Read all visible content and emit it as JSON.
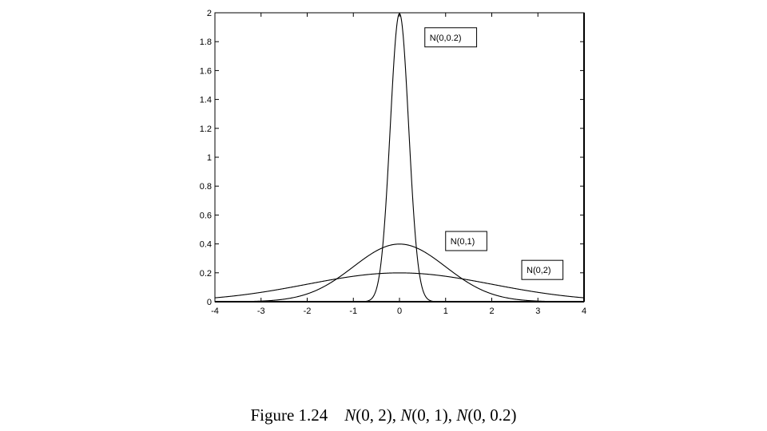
{
  "caption": {
    "prefix": "Figure 1.24",
    "parts": [
      {
        "italic": "N",
        "rest": "(0, 2), "
      },
      {
        "italic": "N",
        "rest": "(0, 1), "
      },
      {
        "italic": "N",
        "rest": "(0, 0.2)"
      }
    ]
  },
  "chart_data": {
    "type": "line",
    "title": "",
    "xlabel": "",
    "ylabel": "",
    "xlim": [
      -4,
      4
    ],
    "ylim": [
      0,
      2
    ],
    "x_ticks": [
      -4,
      -3,
      -2,
      -1,
      0,
      1,
      2,
      3,
      4
    ],
    "x_tick_labels": [
      "-4",
      "-3",
      "-2",
      "-1",
      "0",
      "1",
      "2",
      "3",
      "4"
    ],
    "y_ticks": [
      0,
      0.2,
      0.4,
      0.6,
      0.8,
      1,
      1.2,
      1.4,
      1.6,
      1.8,
      2
    ],
    "y_tick_labels": [
      "0",
      "0.2",
      "0.4",
      "0.6",
      "0.8",
      "1",
      "1.2",
      "1.4",
      "1.6",
      "1.8",
      "2"
    ],
    "grid": false,
    "series": [
      {
        "name": "N(0,2)",
        "distribution": "normal",
        "mean": 0,
        "sigma": 2,
        "peak": 0.2,
        "x": [
          -4,
          -3,
          -2,
          -1,
          0,
          1,
          2,
          3,
          4
        ],
        "values": [
          0.027,
          0.065,
          0.121,
          0.176,
          0.199,
          0.176,
          0.121,
          0.065,
          0.027
        ]
      },
      {
        "name": "N(0,1)",
        "distribution": "normal",
        "mean": 0,
        "sigma": 1,
        "peak": 0.4,
        "x": [
          -4,
          -3,
          -2,
          -1,
          0,
          1,
          2,
          3,
          4
        ],
        "values": [
          0.0001,
          0.004,
          0.054,
          0.242,
          0.399,
          0.242,
          0.054,
          0.004,
          0.0001
        ]
      },
      {
        "name": "N(0,0.2)",
        "distribution": "normal",
        "mean": 0,
        "sigma": 0.2,
        "peak": 2.0,
        "x": [
          -0.8,
          -0.6,
          -0.4,
          -0.2,
          0,
          0.2,
          0.4,
          0.6,
          0.8
        ],
        "values": [
          0.0007,
          0.022,
          0.27,
          1.21,
          1.99,
          1.21,
          0.27,
          0.022,
          0.0007
        ]
      }
    ],
    "annotations": [
      {
        "text": "N(0,0.2)",
        "x": 0.55,
        "y": 1.83,
        "boxed": true
      },
      {
        "text": "N(0,1)",
        "x": 1.0,
        "y": 0.42,
        "boxed": true
      },
      {
        "text": "N(0,2)",
        "x": 2.65,
        "y": 0.22,
        "boxed": true
      }
    ],
    "legend": "none (inline boxed labels)"
  }
}
